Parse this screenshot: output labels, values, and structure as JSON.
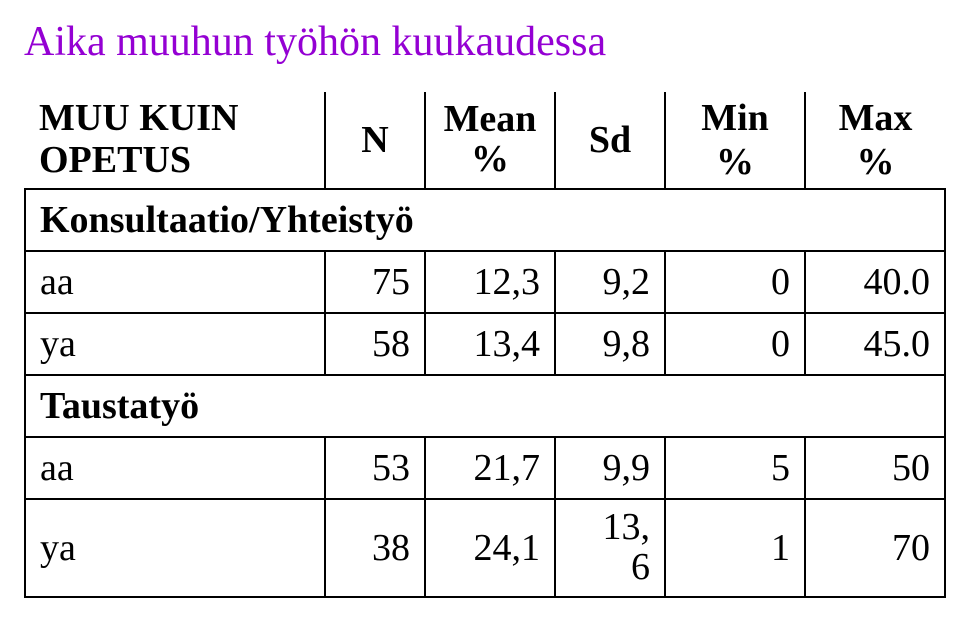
{
  "title": {
    "text": "Aika muuhun työhön kuukaudessa",
    "color": "#9400d3"
  },
  "table": {
    "header": {
      "label_line1": "MUU KUIN",
      "label_line2": "OPETUS",
      "n": "N",
      "mean_line1": "Mean",
      "mean_line2": "%",
      "sd": "Sd",
      "min": "Min %",
      "max": "Max %"
    },
    "sections": [
      {
        "title": "Konsultaatio/Yhteistyö",
        "rows": [
          {
            "label": "aa",
            "n": "75",
            "mean": "12,3",
            "sd": "9,2",
            "min": "0",
            "max": "40.0"
          },
          {
            "label": "ya",
            "n": "58",
            "mean": "13,4",
            "sd": "9,8",
            "min": "0",
            "max": "45.0"
          }
        ]
      },
      {
        "title": "Taustatyö",
        "rows": [
          {
            "label": "aa",
            "n": "53",
            "mean": "21,7",
            "sd": "9,9",
            "min": "5",
            "max": "50"
          },
          {
            "label": "ya",
            "n": "38",
            "mean": "24,1",
            "sd_line1": "13,",
            "sd_line2": "6",
            "min": "1",
            "max": "70"
          }
        ]
      }
    ]
  },
  "colors": {
    "title": "#9400d3",
    "text": "#000000",
    "border": "#000000",
    "background": "#ffffff"
  },
  "fonts": {
    "family": "Times New Roman",
    "title_size_pt": 32,
    "body_size_pt": 28
  }
}
